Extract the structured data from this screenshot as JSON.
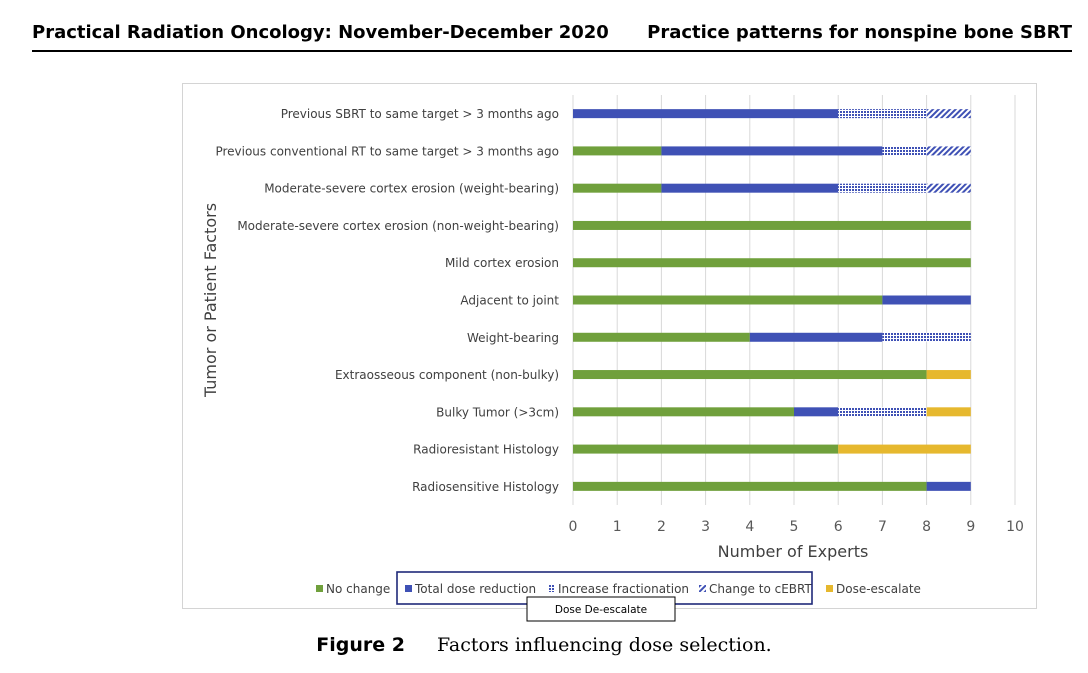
{
  "header": {
    "journal": "Practical Radiation Oncology: November-December 2020",
    "running_title": "Practice patterns for nonspine bone SBRT"
  },
  "caption": {
    "label": "Figure 2",
    "text": "Factors influencing dose selection."
  },
  "chart_data": {
    "type": "bar",
    "orientation": "horizontal",
    "stacked": true,
    "xlabel": "Number of  Experts",
    "ylabel": "Tumor or Patient Factors",
    "xlim": [
      0,
      10
    ],
    "xticks": [
      "0",
      "1",
      "2",
      "3",
      "4",
      "5",
      "6",
      "7",
      "8",
      "9",
      "10"
    ],
    "grid": true,
    "legend_position": "bottom",
    "categories": [
      "Previous SBRT to same target > 3 months ago",
      "Previous conventional RT to same target > 3 months ago",
      "Moderate-severe cortex erosion (weight-bearing)",
      "Moderate-severe cortex erosion (non-weight-bearing)",
      "Mild cortex erosion",
      "Adjacent to joint",
      "Weight-bearing",
      "Extraosseous component (non-bulky)",
      "Bulky Tumor (>3cm)",
      "Radioresistant Histology",
      "Radiosensitive Histology"
    ],
    "series": [
      {
        "name": "No change",
        "color": "#70a03c",
        "pattern": "solid",
        "values": [
          0,
          2,
          2,
          9,
          9,
          7,
          4,
          8,
          5,
          6,
          8
        ]
      },
      {
        "name": "Total dose reduction",
        "color": "#3f51b5",
        "pattern": "solid",
        "values": [
          6,
          5,
          4,
          0,
          0,
          2,
          3,
          0,
          1,
          0,
          1
        ]
      },
      {
        "name": "Increase fractionation",
        "color": "#3f51b5",
        "pattern": "dots",
        "values": [
          2,
          1,
          2,
          0,
          0,
          0,
          2,
          0,
          2,
          0,
          0
        ]
      },
      {
        "name": "Change to cEBRT",
        "color": "#3f51b5",
        "pattern": "diagonal",
        "values": [
          1,
          1,
          1,
          0,
          0,
          0,
          0,
          0,
          0,
          0,
          0
        ]
      },
      {
        "name": "Dose-escalate",
        "color": "#e6b82e",
        "pattern": "solid",
        "values": [
          0,
          0,
          0,
          0,
          0,
          0,
          0,
          1,
          1,
          3,
          0
        ]
      }
    ],
    "legend_group_label": "Dose De-escalate"
  }
}
